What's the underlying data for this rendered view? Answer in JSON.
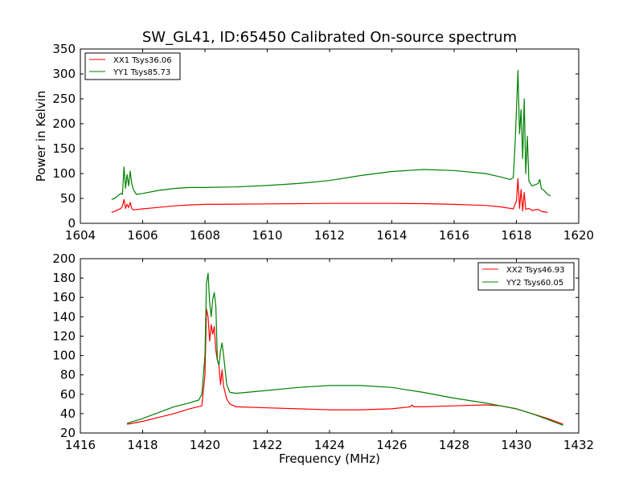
{
  "chart_data": [
    {
      "type": "line",
      "title": "SW_GL41, ID:65450 Calibrated On-source spectrum",
      "xlabel": "",
      "ylabel": "Power in Kelvin",
      "xlim": [
        1604,
        1620
      ],
      "ylim": [
        0,
        350
      ],
      "xticks": [
        1604,
        1606,
        1608,
        1610,
        1612,
        1614,
        1616,
        1618,
        1620
      ],
      "yticks": [
        0,
        50,
        100,
        150,
        200,
        250,
        300,
        350
      ],
      "legend_position": "upper-left",
      "series": [
        {
          "name": "XX1 Tsys36.06",
          "color": "#ff0000",
          "points": [
            [
              1605.0,
              22
            ],
            [
              1605.1,
              24
            ],
            [
              1605.2,
              27
            ],
            [
              1605.3,
              30
            ],
            [
              1605.35,
              34
            ],
            [
              1605.4,
              48
            ],
            [
              1605.45,
              30
            ],
            [
              1605.5,
              38
            ],
            [
              1605.55,
              32
            ],
            [
              1605.6,
              42
            ],
            [
              1605.65,
              30
            ],
            [
              1605.7,
              27
            ],
            [
              1606.0,
              29
            ],
            [
              1606.5,
              32
            ],
            [
              1607.0,
              35
            ],
            [
              1607.5,
              37
            ],
            [
              1608.0,
              38
            ],
            [
              1609.0,
              38.5
            ],
            [
              1610.0,
              39
            ],
            [
              1611.0,
              39.5
            ],
            [
              1612.0,
              40
            ],
            [
              1613.0,
              40
            ],
            [
              1614.0,
              40
            ],
            [
              1615.0,
              39.5
            ],
            [
              1616.0,
              38
            ],
            [
              1617.0,
              36
            ],
            [
              1617.5,
              33
            ],
            [
              1617.9,
              29
            ],
            [
              1618.0,
              45
            ],
            [
              1618.05,
              90
            ],
            [
              1618.1,
              30
            ],
            [
              1618.15,
              68
            ],
            [
              1618.2,
              25
            ],
            [
              1618.25,
              62
            ],
            [
              1618.3,
              28
            ],
            [
              1618.4,
              30
            ],
            [
              1618.5,
              26
            ],
            [
              1618.7,
              28
            ],
            [
              1618.8,
              24
            ],
            [
              1619.0,
              22
            ]
          ]
        },
        {
          "name": "YY1 Tsys85.73",
          "color": "#008000",
          "points": [
            [
              1605.0,
              48
            ],
            [
              1605.1,
              50
            ],
            [
              1605.2,
              55
            ],
            [
              1605.3,
              60
            ],
            [
              1605.35,
              58
            ],
            [
              1605.4,
              113
            ],
            [
              1605.45,
              70
            ],
            [
              1605.5,
              98
            ],
            [
              1605.55,
              75
            ],
            [
              1605.6,
              105
            ],
            [
              1605.65,
              80
            ],
            [
              1605.7,
              68
            ],
            [
              1605.8,
              58
            ],
            [
              1606.0,
              60
            ],
            [
              1606.5,
              66
            ],
            [
              1607.0,
              70
            ],
            [
              1607.5,
              72
            ],
            [
              1608.0,
              72
            ],
            [
              1609.0,
              73
            ],
            [
              1610.0,
              76
            ],
            [
              1611.0,
              80
            ],
            [
              1612.0,
              86
            ],
            [
              1613.0,
              96
            ],
            [
              1614.0,
              104
            ],
            [
              1615.0,
              108
            ],
            [
              1616.0,
              106
            ],
            [
              1617.0,
              100
            ],
            [
              1617.5,
              93
            ],
            [
              1617.8,
              88
            ],
            [
              1617.9,
              92
            ],
            [
              1617.95,
              150
            ],
            [
              1618.0,
              225
            ],
            [
              1618.05,
              307
            ],
            [
              1618.1,
              180
            ],
            [
              1618.15,
              228
            ],
            [
              1618.2,
              130
            ],
            [
              1618.25,
              250
            ],
            [
              1618.3,
              100
            ],
            [
              1618.35,
              175
            ],
            [
              1618.4,
              85
            ],
            [
              1618.5,
              75
            ],
            [
              1618.7,
              80
            ],
            [
              1618.75,
              88
            ],
            [
              1618.8,
              70
            ],
            [
              1618.9,
              65
            ],
            [
              1619.0,
              58
            ],
            [
              1619.1,
              55
            ]
          ]
        }
      ]
    },
    {
      "type": "line",
      "title": "",
      "xlabel": "Frequency (MHz)",
      "ylabel": "",
      "xlim": [
        1416,
        1432
      ],
      "ylim": [
        20,
        200
      ],
      "xticks": [
        1416,
        1418,
        1420,
        1422,
        1424,
        1426,
        1428,
        1430,
        1432
      ],
      "yticks": [
        20,
        40,
        60,
        80,
        100,
        120,
        140,
        160,
        180,
        200
      ],
      "legend_position": "upper-right",
      "series": [
        {
          "name": "XX2 Tsys46.93",
          "color": "#ff0000",
          "points": [
            [
              1417.5,
              29
            ],
            [
              1418.0,
              32
            ],
            [
              1418.5,
              36
            ],
            [
              1419.0,
              40
            ],
            [
              1419.5,
              45
            ],
            [
              1419.9,
              48
            ],
            [
              1420.0,
              80
            ],
            [
              1420.05,
              148
            ],
            [
              1420.1,
              140
            ],
            [
              1420.15,
              115
            ],
            [
              1420.2,
              132
            ],
            [
              1420.25,
              122
            ],
            [
              1420.3,
              130
            ],
            [
              1420.35,
              105
            ],
            [
              1420.4,
              95
            ],
            [
              1420.45,
              90
            ],
            [
              1420.5,
              70
            ],
            [
              1420.55,
              85
            ],
            [
              1420.6,
              68
            ],
            [
              1420.7,
              55
            ],
            [
              1420.8,
              50
            ],
            [
              1421.0,
              47
            ],
            [
              1422.0,
              46
            ],
            [
              1423.0,
              45
            ],
            [
              1424.0,
              44
            ],
            [
              1425.0,
              44
            ],
            [
              1426.0,
              45
            ],
            [
              1426.6,
              47
            ],
            [
              1426.65,
              49
            ],
            [
              1426.7,
              47
            ],
            [
              1427.0,
              47
            ],
            [
              1428.0,
              48
            ],
            [
              1429.0,
              49
            ],
            [
              1429.5,
              48
            ],
            [
              1430.0,
              45
            ],
            [
              1430.5,
              40
            ],
            [
              1431.0,
              35
            ],
            [
              1431.5,
              29
            ]
          ]
        },
        {
          "name": "YY2 Tsys60.05",
          "color": "#008000",
          "points": [
            [
              1417.5,
              30
            ],
            [
              1418.0,
              35
            ],
            [
              1418.5,
              41
            ],
            [
              1419.0,
              47
            ],
            [
              1419.5,
              51
            ],
            [
              1419.8,
              54
            ],
            [
              1419.9,
              60
            ],
            [
              1420.0,
              100
            ],
            [
              1420.05,
              175
            ],
            [
              1420.1,
              185
            ],
            [
              1420.15,
              155
            ],
            [
              1420.2,
              140
            ],
            [
              1420.25,
              158
            ],
            [
              1420.3,
              165
            ],
            [
              1420.35,
              150
            ],
            [
              1420.4,
              95
            ],
            [
              1420.45,
              90
            ],
            [
              1420.5,
              105
            ],
            [
              1420.55,
              113
            ],
            [
              1420.6,
              100
            ],
            [
              1420.7,
              70
            ],
            [
              1420.8,
              62
            ],
            [
              1421.0,
              61
            ],
            [
              1422.0,
              64
            ],
            [
              1423.0,
              67
            ],
            [
              1424.0,
              69
            ],
            [
              1425.0,
              69
            ],
            [
              1426.0,
              67
            ],
            [
              1427.0,
              62
            ],
            [
              1428.0,
              56
            ],
            [
              1429.0,
              51
            ],
            [
              1430.0,
              45
            ],
            [
              1430.5,
              40
            ],
            [
              1431.0,
              34
            ],
            [
              1431.5,
              28
            ]
          ]
        }
      ]
    }
  ]
}
